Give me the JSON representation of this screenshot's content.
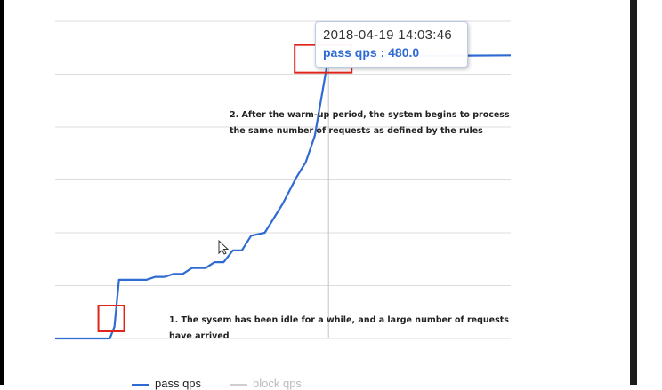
{
  "chart_data": {
    "type": "line",
    "series": [
      {
        "name": "pass qps",
        "color": "#2f6bd3",
        "points": [
          [
            0,
            0
          ],
          [
            12,
            0
          ],
          [
            13,
            20
          ],
          [
            14,
            100
          ],
          [
            16,
            100
          ],
          [
            20,
            100
          ],
          [
            22,
            105
          ],
          [
            24,
            105
          ],
          [
            26,
            110
          ],
          [
            28,
            110
          ],
          [
            30,
            120
          ],
          [
            33,
            120
          ],
          [
            35,
            130
          ],
          [
            37,
            130
          ],
          [
            39,
            150
          ],
          [
            41,
            150
          ],
          [
            43,
            175
          ],
          [
            46,
            180
          ],
          [
            48,
            205
          ],
          [
            50,
            230
          ],
          [
            52,
            260
          ],
          [
            53,
            275
          ],
          [
            55,
            300
          ],
          [
            57,
            345
          ],
          [
            60,
            480
          ],
          [
            62,
            480
          ],
          [
            100,
            482
          ]
        ]
      },
      {
        "name": "block qps",
        "color": "#d0d0d0",
        "points": []
      }
    ],
    "xlim": [
      0,
      100
    ],
    "ylim": [
      0,
      540
    ],
    "gridlines": "horizontal",
    "legend_position": "bottom"
  },
  "tooltip": {
    "date": "2018-04-19 14:03:46",
    "value_label": "pass qps : 480.0"
  },
  "annotations": {
    "warmup": "2. After the warm-up period, the system begins to process the same number of requests as defined by the rules",
    "idle": "1. The sysem has been idle for a while, and a large number of requests have arrived"
  },
  "legend": {
    "pass": "pass qps",
    "block": "block qps"
  }
}
